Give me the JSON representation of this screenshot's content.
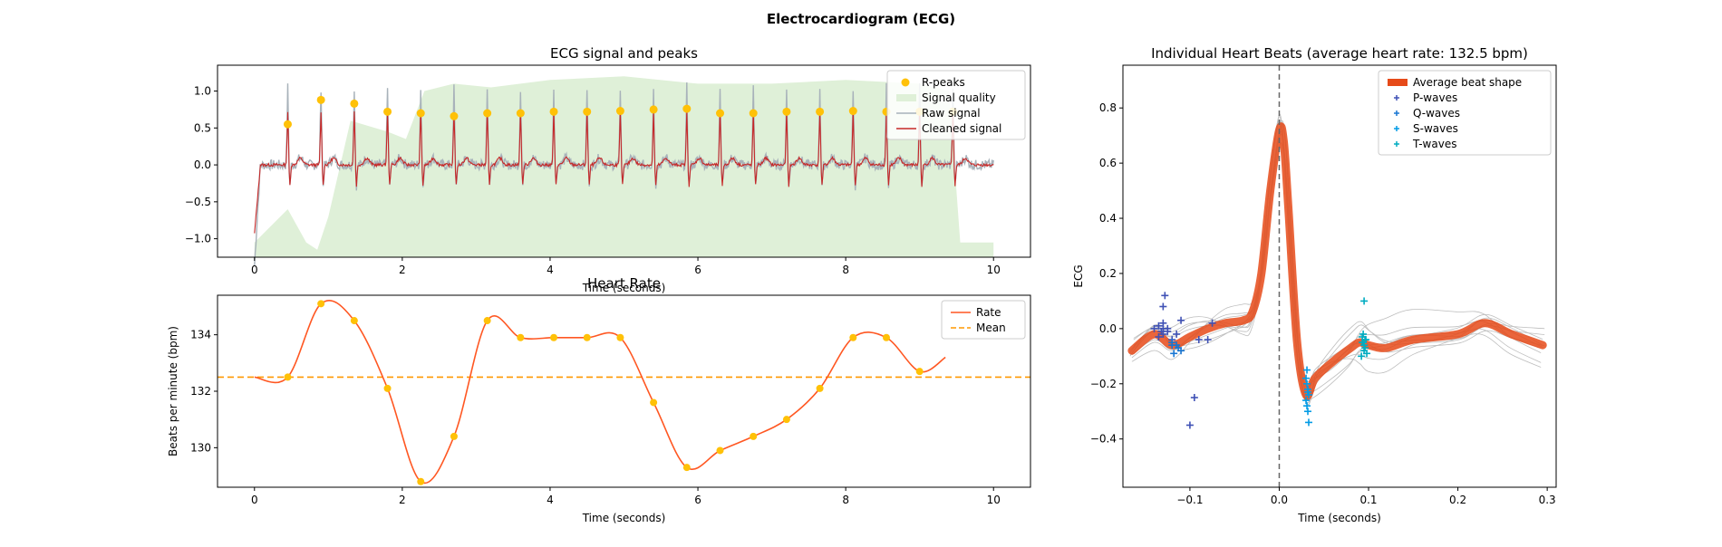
{
  "figure": {
    "title": "Electrocardiogram (ECG)"
  },
  "colors": {
    "peaks": "#FFC107",
    "quality": "#DFF0D8",
    "raw": "#A8B2BA",
    "clean": "#C62828",
    "rate": "#FF5722",
    "mean": "#FF9800",
    "avg_beat": "#E64A19",
    "p": "#3F51B5",
    "q": "#1976D2",
    "s": "#039BE5",
    "t": "#00ACC1",
    "axis": "#000000",
    "individual": "#BDBDBD",
    "vline": "#666666"
  },
  "chart_data": [
    {
      "id": "ecg",
      "type": "line",
      "title": "ECG signal and peaks",
      "xlabel": "Time (seconds)",
      "ylabel": "",
      "xlim": [
        -0.5,
        10.5
      ],
      "ylim": [
        -1.25,
        1.35
      ],
      "xticks": [
        0,
        2,
        4,
        6,
        8,
        10
      ],
      "yticks": [
        -1.0,
        -0.5,
        0.0,
        0.5,
        1.0
      ],
      "ytick_labels": [
        "−1.0",
        "−0.5",
        "0.0",
        "0.5",
        "1.0"
      ],
      "legend": {
        "position": "top-right",
        "entries": [
          "R-peaks",
          "Signal quality",
          "Raw signal",
          "Cleaned signal"
        ]
      },
      "r_peaks": {
        "x": [
          0.45,
          0.9,
          1.35,
          1.8,
          2.25,
          2.7,
          3.15,
          3.6,
          4.05,
          4.5,
          4.95,
          5.4,
          5.85,
          6.3,
          6.75,
          7.2,
          7.65,
          8.1,
          8.55,
          9.0,
          9.45
        ],
        "y": [
          0.55,
          0.88,
          0.83,
          0.72,
          0.7,
          0.66,
          0.7,
          0.7,
          0.72,
          0.72,
          0.73,
          0.75,
          0.76,
          0.7,
          0.7,
          0.72,
          0.72,
          0.73,
          0.72,
          0.72,
          0.72
        ]
      },
      "signal_quality": {
        "x": [
          0,
          0.45,
          0.7,
          0.85,
          1.0,
          1.3,
          1.8,
          2.05,
          2.3,
          2.7,
          3.2,
          4.0,
          5.0,
          6.0,
          7.0,
          8.0,
          9.0,
          9.4,
          9.55,
          10
        ],
        "y": [
          -1.05,
          -0.6,
          -1.05,
          -1.15,
          -0.7,
          0.6,
          0.45,
          0.35,
          1.0,
          1.1,
          1.05,
          1.15,
          1.2,
          1.1,
          1.1,
          1.15,
          1.1,
          1.0,
          -1.05,
          -1.05
        ]
      },
      "raw_beat_amplitude": 1.05,
      "clean_beat_amplitude": 0.72
    },
    {
      "id": "rate",
      "type": "line",
      "title": "Heart Rate",
      "xlabel": "Time (seconds)",
      "ylabel": "Beats per minute (bpm)",
      "xlim": [
        -0.5,
        10.5
      ],
      "ylim": [
        128.6,
        135.4
      ],
      "xticks": [
        0,
        2,
        4,
        6,
        8,
        10
      ],
      "yticks": [
        130,
        132,
        134
      ],
      "legend": {
        "position": "top-right",
        "entries": [
          "Rate",
          "Mean"
        ]
      },
      "mean": 132.5,
      "points": {
        "x": [
          0.45,
          0.9,
          1.35,
          1.8,
          2.25,
          2.7,
          3.15,
          3.6,
          4.05,
          4.5,
          4.95,
          5.4,
          5.85,
          6.3,
          6.75,
          7.2,
          7.65,
          8.1,
          8.55,
          9.0
        ],
        "y": [
          132.5,
          135.1,
          134.5,
          132.1,
          128.8,
          130.4,
          134.5,
          133.9,
          133.9,
          133.9,
          133.9,
          131.6,
          129.3,
          129.9,
          130.4,
          131.0,
          132.1,
          133.9,
          133.9,
          132.7
        ]
      },
      "start": {
        "x": 0.0,
        "y": 132.5
      }
    },
    {
      "id": "beats",
      "type": "line",
      "title": "Individual Heart Beats (average heart rate: 132.5 bpm)",
      "xlabel": "Time (seconds)",
      "ylabel": "ECG",
      "xlim": [
        -0.175,
        0.31
      ],
      "ylim": [
        -0.575,
        0.955
      ],
      "xticks": [
        -0.1,
        0.0,
        0.1,
        0.2,
        0.3
      ],
      "xtick_labels": [
        "−0.1",
        "0.0",
        "0.1",
        "0.2",
        "0.3"
      ],
      "yticks": [
        -0.4,
        -0.2,
        0.0,
        0.2,
        0.4,
        0.6,
        0.8
      ],
      "ytick_labels": [
        "−0.4",
        "−0.2",
        "0.0",
        "0.2",
        "0.4",
        "0.6",
        "0.8"
      ],
      "legend": {
        "position": "top-right",
        "entries": [
          "Average beat shape",
          "P-waves",
          "Q-waves",
          "S-waves",
          "T-waves"
        ]
      },
      "average_beat": {
        "x": [
          -0.165,
          -0.14,
          -0.12,
          -0.1,
          -0.08,
          -0.06,
          -0.04,
          -0.03,
          -0.02,
          -0.01,
          0.0,
          0.005,
          0.01,
          0.02,
          0.03,
          0.04,
          0.06,
          0.08,
          0.09,
          0.1,
          0.12,
          0.15,
          0.2,
          0.23,
          0.26,
          0.295
        ],
        "y": [
          -0.08,
          -0.02,
          -0.06,
          -0.03,
          0.0,
          0.02,
          0.03,
          0.06,
          0.2,
          0.5,
          0.72,
          0.68,
          0.45,
          -0.05,
          -0.24,
          -0.18,
          -0.12,
          -0.07,
          -0.05,
          -0.06,
          -0.07,
          -0.04,
          -0.02,
          0.02,
          -0.02,
          -0.06
        ]
      },
      "p_waves": {
        "x": [
          -0.14,
          -0.135,
          -0.13,
          -0.125,
          -0.13,
          -0.135,
          -0.12,
          -0.13,
          -0.128,
          -0.132,
          -0.13,
          -0.09,
          -0.08,
          -0.075,
          -0.1,
          -0.095,
          -0.11,
          -0.115,
          -0.125
        ],
        "y": [
          0.0,
          0.01,
          0.02,
          0.0,
          -0.02,
          -0.03,
          -0.04,
          0.08,
          0.12,
          -0.01,
          0.0,
          -0.04,
          -0.04,
          0.02,
          -0.35,
          -0.25,
          0.03,
          -0.02,
          -0.01
        ]
      },
      "q_waves": {
        "x": [
          -0.12,
          -0.115,
          -0.11,
          -0.118,
          -0.113,
          -0.12
        ],
        "y": [
          -0.05,
          -0.06,
          -0.08,
          -0.09,
          -0.07,
          -0.06
        ]
      },
      "s_waves": {
        "x": [
          0.03,
          0.031,
          0.032,
          0.033,
          0.03,
          0.031,
          0.032,
          0.033,
          0.031,
          0.032
        ],
        "y": [
          -0.18,
          -0.2,
          -0.22,
          -0.24,
          -0.26,
          -0.28,
          -0.3,
          -0.34,
          -0.15,
          -0.23
        ]
      },
      "t_waves": {
        "x": [
          0.095,
          0.093,
          0.094,
          0.096,
          0.097,
          0.092,
          0.098,
          0.095,
          0.094,
          0.095,
          0.093,
          0.096
        ],
        "y": [
          0.1,
          -0.03,
          -0.05,
          -0.07,
          -0.04,
          -0.1,
          -0.09,
          -0.06,
          -0.02,
          -0.08,
          -0.05,
          -0.04
        ]
      },
      "vline_x": 0.0
    }
  ]
}
